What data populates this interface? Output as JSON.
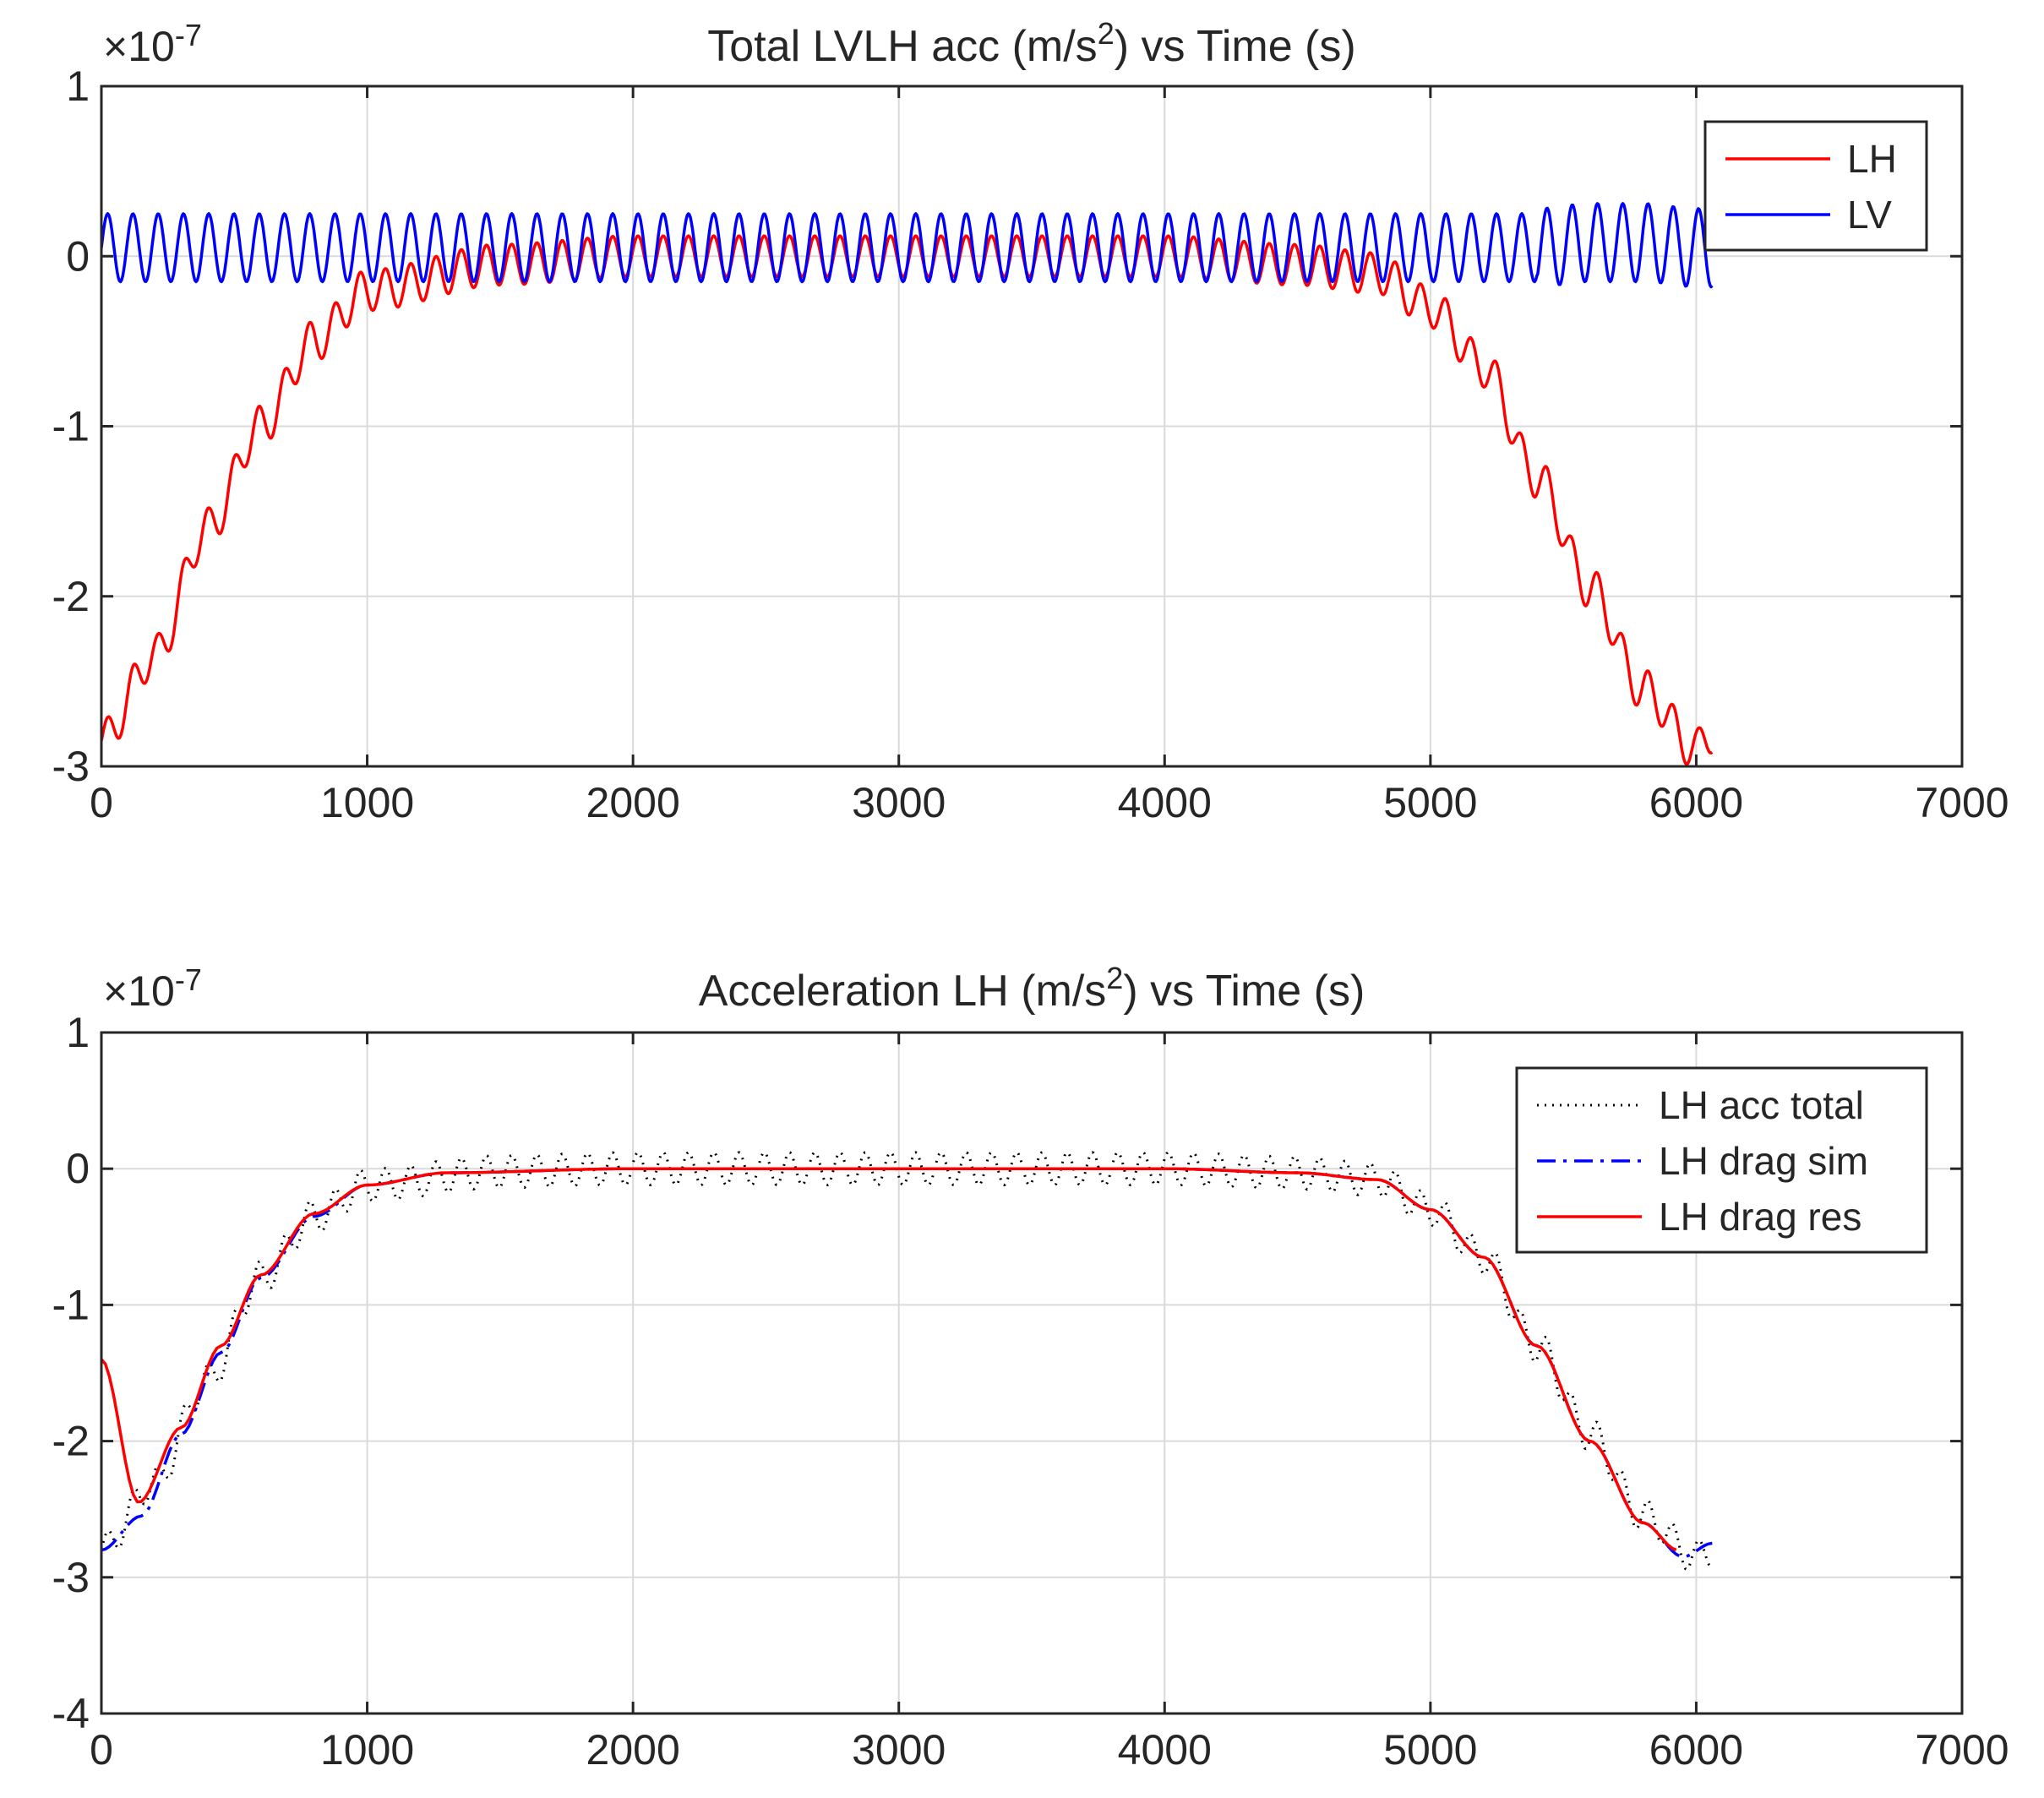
{
  "chart_data": [
    {
      "type": "line",
      "title": "Total LVLH acc (m/s²) vs Time (s)",
      "title_parts": {
        "pre": "Total LVLH acc (m/s",
        "sup": "2",
        "post": ") vs Time (s)"
      },
      "exponent_label": {
        "base": "×10",
        "exp": "-7"
      },
      "xlabel": "",
      "ylabel": "",
      "xlim": [
        0,
        7000
      ],
      "ylim": [
        -3,
        1
      ],
      "x_ticks": [
        0,
        1000,
        2000,
        3000,
        4000,
        5000,
        6000,
        7000
      ],
      "x_tick_labels": [
        "0",
        "1000",
        "2000",
        "3000",
        "4000",
        "5000",
        "6000",
        "7000"
      ],
      "y_ticks": [
        -3,
        -2,
        -1,
        0,
        1
      ],
      "y_tick_labels": [
        "-3",
        "-2",
        "-1",
        "0",
        "1"
      ],
      "grid": true,
      "legend_position": "top-right",
      "x_sample": [
        0,
        200,
        400,
        600,
        800,
        1000,
        1500,
        2000,
        3000,
        4000,
        4500,
        4800,
        5000,
        5200,
        5400,
        5600,
        5800,
        6000,
        6060
      ],
      "series": [
        {
          "name": "LH",
          "color": "#ff0000",
          "style": "solid",
          "oscillation_period_s": 95,
          "oscillation_amplitude": 0.12,
          "values": [
            -2.85,
            -2.35,
            -1.6,
            -1.0,
            -0.5,
            -0.2,
            -0.05,
            0.0,
            0.0,
            0.0,
            -0.05,
            -0.1,
            -0.3,
            -0.65,
            -1.3,
            -1.95,
            -2.55,
            -2.9,
            -2.8
          ]
        },
        {
          "name": "LV",
          "color": "#0000ff",
          "style": "solid",
          "oscillation_period_s": 95,
          "oscillation_amplitude": 0.2,
          "values": [
            0.05,
            0.05,
            0.05,
            0.05,
            0.05,
            0.05,
            0.05,
            0.05,
            0.05,
            0.05,
            0.05,
            0.05,
            0.05,
            0.05,
            0.05,
            0.08,
            0.08,
            0.05,
            0.05
          ]
        }
      ]
    },
    {
      "type": "line",
      "title": "Acceleration LH (m/s²) vs Time (s)",
      "title_parts": {
        "pre": "Acceleration LH (m/s",
        "sup": "2",
        "post": ") vs Time (s)"
      },
      "exponent_label": {
        "base": "×10",
        "exp": "-7"
      },
      "xlabel": "",
      "ylabel": "",
      "xlim": [
        0,
        7000
      ],
      "ylim": [
        -4,
        1
      ],
      "x_ticks": [
        0,
        1000,
        2000,
        3000,
        4000,
        5000,
        6000,
        7000
      ],
      "x_tick_labels": [
        "0",
        "1000",
        "2000",
        "3000",
        "4000",
        "5000",
        "6000",
        "7000"
      ],
      "y_ticks": [
        -4,
        -3,
        -2,
        -1,
        0,
        1
      ],
      "y_tick_labels": [
        "-4",
        "-3",
        "-2",
        "-1",
        "0",
        "1"
      ],
      "grid": true,
      "legend_position": "top-right",
      "series": [
        {
          "name": "LH acc total",
          "color": "#000000",
          "style": "dotted",
          "oscillation_period_s": 95,
          "oscillation_amplitude": 0.12,
          "x": [
            0,
            200,
            400,
            600,
            800,
            1000,
            1500,
            2000,
            3000,
            4000,
            4500,
            4800,
            5000,
            5200,
            5400,
            5600,
            5800,
            6000,
            6060
          ],
          "values": [
            -2.8,
            -2.3,
            -1.55,
            -0.8,
            -0.35,
            -0.12,
            -0.02,
            0.0,
            0.0,
            0.0,
            -0.03,
            -0.08,
            -0.3,
            -0.65,
            -1.3,
            -1.95,
            -2.55,
            -2.85,
            -2.8
          ]
        },
        {
          "name": "LH drag sim",
          "color": "#0000ff",
          "style": "dashdot",
          "x": [
            0,
            150,
            300,
            450,
            600,
            800,
            1000,
            1300,
            2000,
            3000,
            4000,
            4500,
            4800,
            5000,
            5200,
            5400,
            5600,
            5800,
            5950,
            6060
          ],
          "values": [
            -2.8,
            -2.55,
            -1.95,
            -1.35,
            -0.8,
            -0.35,
            -0.12,
            -0.03,
            0.0,
            0.0,
            0.0,
            -0.03,
            -0.08,
            -0.3,
            -0.65,
            -1.3,
            -2.0,
            -2.6,
            -2.85,
            -2.75
          ]
        },
        {
          "name": "LH drag res",
          "color": "#ff0000",
          "style": "solid",
          "x": [
            0,
            140,
            300,
            450,
            600,
            800,
            1000,
            1300,
            2000,
            3000,
            4000,
            4500,
            4800,
            5000,
            5200,
            5400,
            5600,
            5800,
            5930
          ],
          "values": [
            -1.4,
            -2.45,
            -1.9,
            -1.3,
            -0.78,
            -0.33,
            -0.12,
            -0.03,
            0.0,
            0.0,
            0.0,
            -0.03,
            -0.08,
            -0.3,
            -0.65,
            -1.3,
            -2.0,
            -2.6,
            -2.8
          ]
        }
      ]
    }
  ]
}
